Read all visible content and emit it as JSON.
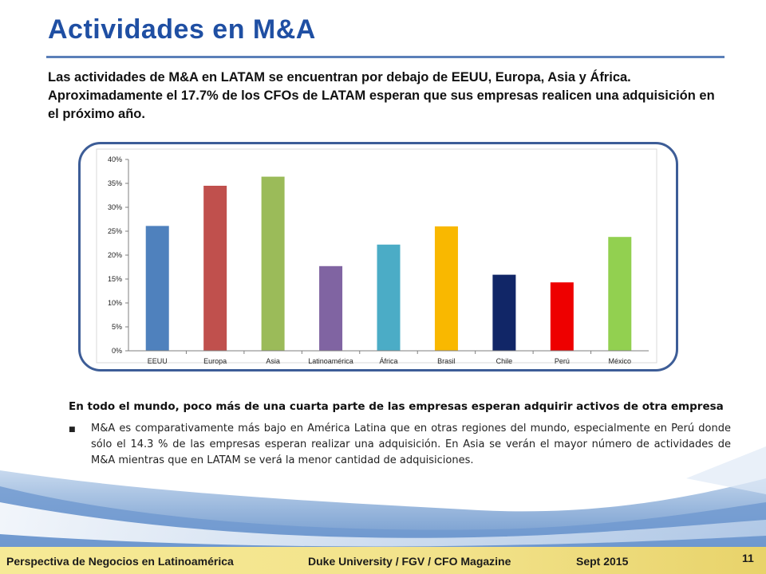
{
  "title": "Actividades  en M&A",
  "intro": "Las actividades de M&A en LATAM se encuentran por debajo de EEUU, Europa, Asia y África. Aproximadamente el 17.7% de los CFOs de LATAM esperan que sus empresas realicen una adquisición en el próximo año.",
  "summary_heading": "En todo el mundo, poco más de una cuarta parte de las empresas esperan adquirir activos de otra empresa",
  "bullets": [
    "M&A es comparativamente más bajo en América Latina que en otras regiones del mundo, especialmente en Perú donde sólo el 14.3 % de las empresas esperan realizar una adquisición. En Asia se verán el mayor número de actividades de M&A mientras que en LATAM se verá la menor cantidad de adquisiciones."
  ],
  "footer": {
    "left": "Perspectiva de Negocios en Latinoamérica",
    "center": "Duke University / FGV / CFO Magazine",
    "date": "Sept 2015",
    "page": "11"
  },
  "colors": {
    "title": "#1f4fa3",
    "frame": "#3d5d97",
    "footer_band": "#f2e28a"
  },
  "chart_data": {
    "type": "bar",
    "categories": [
      "EEUU",
      "Europa",
      "Asia",
      "Latinoamérica",
      "África",
      "Brasil",
      "Chile",
      "Perú",
      "México"
    ],
    "values": [
      26.1,
      34.5,
      36.4,
      17.7,
      22.2,
      26.0,
      15.9,
      14.3,
      23.8
    ],
    "colors": [
      "#4f81bd",
      "#c0504d",
      "#9bbb59",
      "#8064a2",
      "#4bacc6",
      "#f9b800",
      "#112667",
      "#ee0000",
      "#92d050"
    ],
    "yticks": [
      "0%",
      "5%",
      "10%",
      "15%",
      "20%",
      "25%",
      "30%",
      "35%",
      "40%"
    ],
    "ylim": [
      0,
      40
    ],
    "grid": false,
    "title": "",
    "xlabel": "",
    "ylabel": ""
  }
}
